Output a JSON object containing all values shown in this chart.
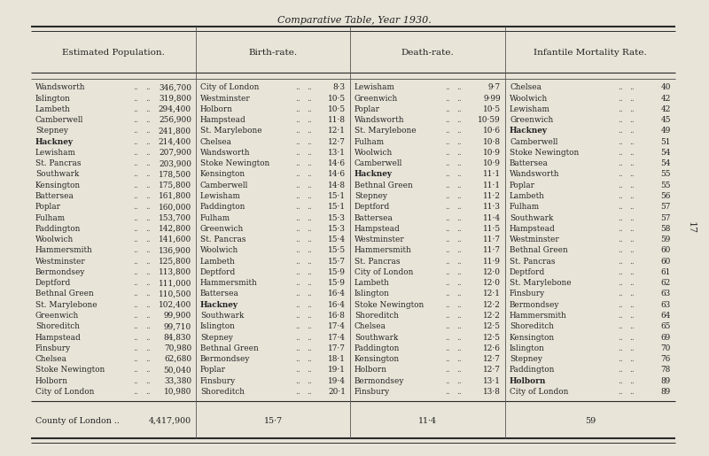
{
  "title": "Comparative Table, Year 1930.",
  "bg_color": "#e8e4d8",
  "page_number": "17",
  "columns": {
    "pop": {
      "header": "Estimated Population.",
      "names": [
        "Wandsworth",
        "Islington",
        "Lambeth",
        "Camberwell",
        "Stepney",
        "Hackney",
        "Lewisham",
        "St. Pancras",
        "Southwark",
        "Kensington",
        "Battersea",
        "Poplar",
        "Fulham",
        "Paddington",
        "Woolwich",
        "Hammersmith",
        "Westminster",
        "Bermondsey",
        "Deptford",
        "Bethnal Green",
        "St. Marylebone",
        "Greenwich",
        "Shoreditch",
        "Hampstead",
        "Finsbury",
        "Chelsea",
        "Stoke Newington",
        "Holborn",
        "City of London"
      ],
      "bold": [
        false,
        false,
        false,
        false,
        false,
        true,
        false,
        false,
        false,
        false,
        false,
        false,
        false,
        false,
        false,
        false,
        false,
        false,
        false,
        false,
        false,
        false,
        false,
        false,
        false,
        false,
        false,
        false,
        false
      ],
      "values": [
        "346,700",
        "319,800",
        "294,400",
        "256,900",
        "241,800",
        "214,400",
        "207,900",
        "203,900",
        "178,500",
        "175,800",
        "161,800",
        "160,000",
        "153,700",
        "142,800",
        "141,600",
        "136,900",
        "125,800",
        "113,800",
        "111,000",
        "110,500",
        "102,400",
        "99,900",
        "99,710",
        "84,830",
        "70,980",
        "62,680",
        "50,040",
        "33,380",
        "10,980"
      ]
    },
    "birth": {
      "header": "Birth-rate.",
      "names": [
        "City of London",
        "Westminster",
        "Holborn",
        "Hampstead",
        "St. Marylebone",
        "Chelsea",
        "Wandsworth",
        "Stoke Newington",
        "Kensington",
        "Camberwell",
        "Lewisham",
        "Paddington",
        "Fulham",
        "Greenwich",
        "St. Pancras",
        "Woolwich",
        "Lambeth",
        "Deptford",
        "Hammersmith",
        "Battersea",
        "Hackney",
        "Southwark",
        "Islington",
        "Stepney",
        "Bethnal Green",
        "Bermondsey",
        "Poplar",
        "Finsbury",
        "Shoreditch"
      ],
      "bold": [
        false,
        false,
        false,
        false,
        false,
        false,
        false,
        false,
        false,
        false,
        false,
        false,
        false,
        false,
        false,
        false,
        false,
        false,
        false,
        false,
        true,
        false,
        false,
        false,
        false,
        false,
        false,
        false,
        false
      ],
      "values": [
        "8·3",
        "10·5",
        "10·5",
        "11·8",
        "12·1",
        "12·7",
        "13·1",
        "14·6",
        "14·6",
        "14·8",
        "15·1",
        "15·1",
        "15·3",
        "15·3",
        "15·4",
        "15·5",
        "15·7",
        "15·9",
        "15·9",
        "16·4",
        "16·4",
        "16·8",
        "17·4",
        "17·4",
        "17·7",
        "18·1",
        "19·1",
        "19·4",
        "20·1"
      ]
    },
    "death": {
      "header": "Death-rate.",
      "names": [
        "Lewisham",
        "Greenwich",
        "Poplar",
        "Wandsworth",
        "St. Marylebone",
        "Fulham",
        "Woolwich",
        "Camberwell",
        "Hackney",
        "Bethnal Green",
        "Stepney",
        "Deptford",
        "Battersea",
        "Hampstead",
        "Westminster",
        "Hammersmith",
        "St. Pancras",
        "City of London",
        "Lambeth",
        "Islington",
        "Stoke Newington",
        "Shoreditch",
        "Chelsea",
        "Southwark",
        "Paddington",
        "Kensington",
        "Holborn",
        "Bermondsey",
        "Finsbury"
      ],
      "bold": [
        false,
        false,
        false,
        false,
        false,
        false,
        false,
        false,
        true,
        false,
        false,
        false,
        false,
        false,
        false,
        false,
        false,
        false,
        false,
        false,
        false,
        false,
        false,
        false,
        false,
        false,
        false,
        false,
        false
      ],
      "values": [
        "9·7",
        "9·99",
        "10·5",
        "10·59",
        "10·6",
        "10·8",
        "10·9",
        "10·9",
        "11·1",
        "11·1",
        "11·2",
        "11·3",
        "11·4",
        "11·5",
        "11·7",
        "11·7",
        "11·9",
        "12·0",
        "12·0",
        "12·1",
        "12·2",
        "12·2",
        "12·5",
        "12·5",
        "12·6",
        "12·7",
        "12·7",
        "13·1",
        "13·8"
      ]
    },
    "infant": {
      "header": "Infantile Mortality Rate.",
      "names": [
        "Chelsea",
        "Woolwich",
        "Lewisham",
        "Greenwich",
        "Hackney",
        "Camberwell",
        "Stoke Newington",
        "Battersea",
        "Wandsworth",
        "Poplar",
        "Lambeth",
        "Fulham",
        "Southwark",
        "Hampstead",
        "Westminster",
        "Bethnal Green",
        "St. Pancras",
        "Deptford",
        "St. Marylebone",
        "Finsbury",
        "Bermondsey",
        "Hammersmith",
        "Shoreditch",
        "Kensington",
        "Islington",
        "Stepney",
        "Paddington",
        "Holborn",
        "City of London"
      ],
      "bold": [
        false,
        false,
        false,
        false,
        true,
        false,
        false,
        false,
        false,
        false,
        false,
        false,
        false,
        false,
        false,
        false,
        false,
        false,
        false,
        false,
        false,
        false,
        false,
        false,
        false,
        false,
        false,
        true,
        false
      ],
      "values": [
        "40",
        "42",
        "42",
        "45",
        "49",
        "51",
        "54",
        "54",
        "55",
        "55",
        "56",
        "57",
        "57",
        "58",
        "59",
        "60",
        "60",
        "61",
        "62",
        "63",
        "63",
        "64",
        "65",
        "69",
        "70",
        "76",
        "78",
        "89",
        "89"
      ]
    }
  },
  "footer": {
    "label": "County of London",
    "pop": "4,417,900",
    "birth": "15·7",
    "death": "11·4",
    "infant": "59"
  }
}
